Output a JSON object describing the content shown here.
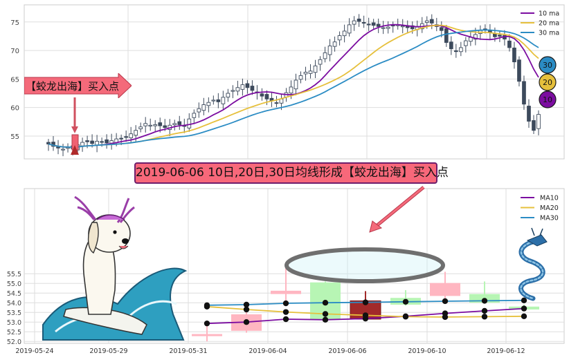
{
  "banner": {
    "text": "2019-06-06 10日,20日,30日均线形成【蛟龙出海】买入点"
  },
  "callout": {
    "text": "【蛟龙出海】买入点"
  },
  "colors": {
    "ma10": "#7b0ca0",
    "ma20": "#e6c03c",
    "ma30": "#2b8cc4",
    "up": "#ffb6c1",
    "down": "#b7f5b4",
    "signal": "#a22a2a",
    "banner_bg": "#f7687a"
  },
  "badges": [
    "30",
    "20",
    "10"
  ],
  "icons": [
    "dragon-icon",
    "dog-surfing-illustration"
  ],
  "chart_data": [
    {
      "type": "candlestick",
      "title": "",
      "ylim": [
        51,
        78
      ],
      "yticks": [
        55,
        60,
        65,
        70,
        75
      ],
      "legend": {
        "placement": "top-right",
        "entries": [
          "10 ma",
          "20 ma",
          "30 ma"
        ]
      },
      "grid": true,
      "close": [
        53.6,
        53.2,
        52.9,
        52.7,
        53.0,
        52.8,
        53.5,
        53.9,
        54.0,
        53.7,
        54.1,
        54.0,
        53.8,
        54.2,
        54.5,
        54.6,
        54.9,
        55.4,
        56.0,
        56.6,
        57.2,
        56.9,
        57.0,
        56.8,
        56.5,
        56.9,
        57.2,
        57.0,
        56.7,
        58.0,
        59.0,
        59.8,
        60.5,
        60.9,
        61.3,
        61.0,
        61.8,
        62.5,
        63.0,
        63.5,
        64.0,
        63.5,
        63.0,
        62.6,
        62.0,
        61.5,
        61.2,
        60.8,
        61.5,
        62.6,
        63.6,
        64.8,
        65.6,
        66.2,
        66.4,
        67.3,
        68.4,
        69.6,
        70.8,
        71.5,
        72.6,
        73.4,
        74.5,
        75.2,
        75.1,
        74.9,
        74.6,
        74.4,
        74.2,
        74.0,
        74.1,
        74.3,
        74.5,
        74.3,
        74.0,
        73.8,
        74.1,
        74.7,
        75.2,
        74.8,
        74.2,
        73.5,
        71.4,
        70.3,
        69.8,
        70.5,
        71.7,
        72.3,
        72.8,
        73.5,
        73.7,
        73.1,
        72.4,
        72.5,
        72.0,
        70.5,
        68.0,
        64.6,
        60.6,
        57.6,
        56.0,
        58.8
      ]
    },
    {
      "type": "candlestick",
      "title": "",
      "ylim": [
        51.9,
        59.9
      ],
      "yticks": [
        52.0,
        52.5,
        53.0,
        53.5,
        54.0,
        54.5,
        55.0,
        55.5
      ],
      "x_tick_labels": [
        "2019-05-24",
        "2019-05-29",
        "2019-05-31",
        "2019-06-04",
        "2019-06-06",
        "2019-06-10",
        "2019-06-12"
      ],
      "legend": {
        "placement": "top-right",
        "entries": [
          "MA10",
          "MA20",
          "MA30"
        ]
      },
      "grid": true,
      "candles": [
        {
          "date": "2019-05-31",
          "open": 52.38,
          "close": 52.28,
          "high": 52.8,
          "low": 52.0,
          "direction": "up"
        },
        {
          "date": "2019-06-03",
          "open": 52.55,
          "close": 53.4,
          "high": 53.65,
          "low": 52.45,
          "direction": "up"
        },
        {
          "date": "2019-06-04",
          "open": 54.45,
          "close": 54.62,
          "high": 55.8,
          "low": 53.9,
          "direction": "up"
        },
        {
          "date": "2019-06-05",
          "open": 55.05,
          "close": 53.15,
          "high": 55.1,
          "low": 53.1,
          "direction": "down"
        },
        {
          "date": "2019-06-06",
          "open": 54.1,
          "close": 53.15,
          "high": 54.6,
          "low": 53.05,
          "direction": "signal"
        },
        {
          "date": "2019-06-07",
          "open": 54.25,
          "close": 53.9,
          "high": 54.65,
          "low": 53.85,
          "direction": "down"
        },
        {
          "date": "2019-06-10",
          "open": 55.02,
          "close": 54.35,
          "high": 55.6,
          "low": 54.2,
          "direction": "up"
        },
        {
          "date": "2019-06-11",
          "open": 54.45,
          "close": 54.0,
          "high": 55.1,
          "low": 53.95,
          "direction": "down"
        },
        {
          "date": "2019-06-12",
          "open": 53.8,
          "close": 53.65,
          "high": 53.9,
          "low": 53.6,
          "direction": "down"
        }
      ],
      "series": [
        {
          "name": "MA10",
          "x": [
            "2019-05-31",
            "2019-06-03",
            "2019-06-04",
            "2019-06-05",
            "2019-06-06",
            "2019-06-07",
            "2019-06-10",
            "2019-06-11",
            "2019-06-12"
          ],
          "values": [
            52.93,
            53.0,
            53.15,
            53.12,
            53.18,
            53.3,
            53.45,
            53.58,
            53.7
          ]
        },
        {
          "name": "MA20",
          "x": [
            "2019-05-31",
            "2019-06-03",
            "2019-06-04",
            "2019-06-05",
            "2019-06-06",
            "2019-06-07",
            "2019-06-10",
            "2019-06-11",
            "2019-06-12"
          ],
          "values": [
            53.8,
            53.65,
            53.52,
            53.42,
            53.35,
            53.28,
            53.26,
            53.28,
            53.3
          ]
        },
        {
          "name": "MA30",
          "x": [
            "2019-05-31",
            "2019-06-03",
            "2019-06-04",
            "2019-06-05",
            "2019-06-06",
            "2019-06-07",
            "2019-06-10",
            "2019-06-11",
            "2019-06-12"
          ],
          "values": [
            53.87,
            53.9,
            53.97,
            54.0,
            54.02,
            54.05,
            54.08,
            54.1,
            54.12
          ]
        }
      ]
    }
  ]
}
